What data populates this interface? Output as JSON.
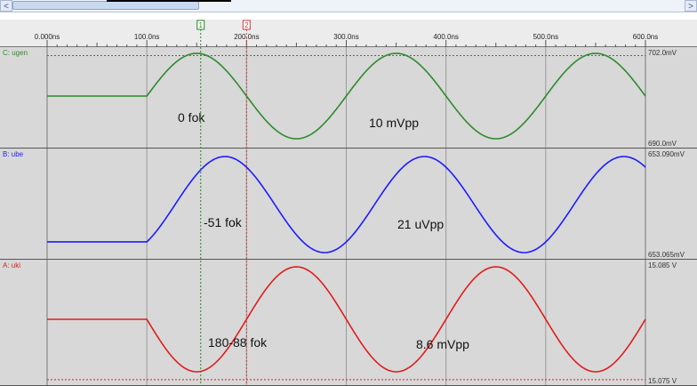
{
  "scrollbar": {
    "left_arrow": "<",
    "right_arrow": ">"
  },
  "cursors": [
    {
      "label": "1",
      "color": "#1f8a1f",
      "time_ns": 154
    },
    {
      "label": "2",
      "color": "#d23a3a",
      "time_ns": 200
    }
  ],
  "timeline": {
    "range_ns": [
      0,
      600
    ],
    "ticks": [
      "0.000ns",
      "100.0ns",
      "200.0ns",
      "300.0ns",
      "400.0ns",
      "500.0ns",
      "600.0ns"
    ]
  },
  "colors": {
    "background": "#d8d8d8",
    "grid": "#9a9a9a",
    "ugen": "#2e8b2e",
    "ube": "#1c1cff",
    "uki": "#e01c1c"
  },
  "chart_data": {
    "type": "line",
    "x_unit": "ns",
    "xlim": [
      0,
      600
    ],
    "channels": [
      {
        "name": "C: ugen",
        "color": "#2e8b2e",
        "ylim": [
          690.0,
          702.0
        ],
        "scale_top": "702.0mV",
        "scale_bottom": "690.0mV",
        "start_ns": 100,
        "baseline": 696.0,
        "amplitude": 5.0,
        "period_ns": 200,
        "phase_deg": 0,
        "annotations": [
          "0 fok",
          "10 mVpp"
        ],
        "ref_level": 701.0
      },
      {
        "name": "B: ube",
        "color": "#1c1cff",
        "ylim": [
          653.065,
          653.09
        ],
        "scale_top": "653.090mV",
        "scale_bottom": "653.065mV",
        "start_ns": 100,
        "baseline": 653.0715,
        "amplitude": 10.5,
        "period_ns": 200,
        "phase_deg": -51,
        "annotations": [
          "-51 fok",
          "21 uVpp"
        ]
      },
      {
        "name": "A: uki",
        "color": "#e01c1c",
        "ylim": [
          15.075,
          15.085
        ],
        "scale_top": "15.085 V",
        "scale_bottom": "15.075 V",
        "start_ns": 100,
        "baseline": 15.0843,
        "amplitude": 4.3,
        "period_ns": 200,
        "phase_deg": 180,
        "annotations": [
          "180-88 fok",
          "8.6 mVpp"
        ],
        "ref_level": 15.0755
      }
    ]
  }
}
